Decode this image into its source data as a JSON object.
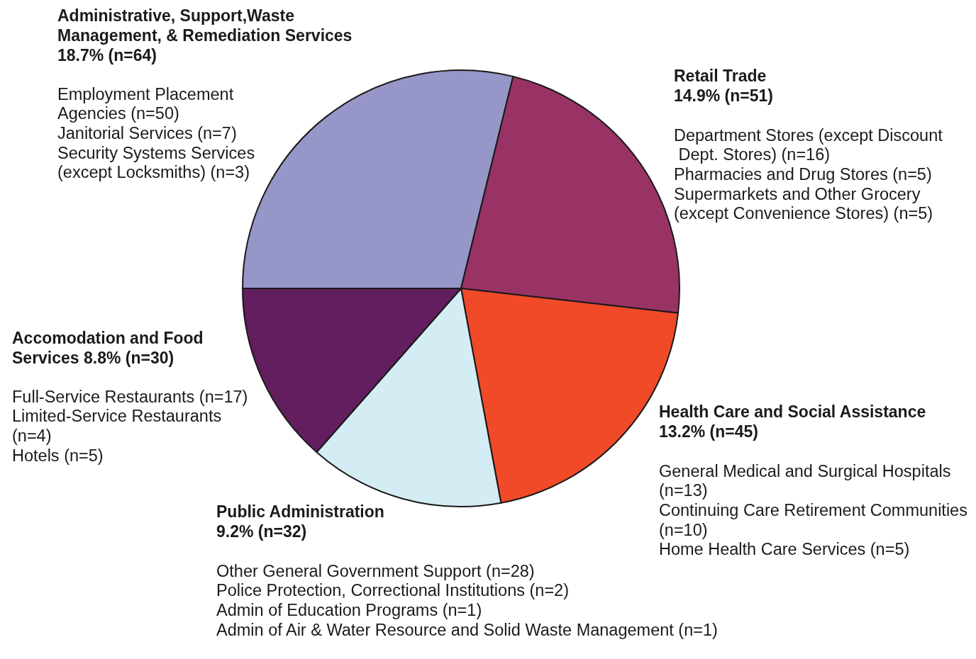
{
  "chart_data": {
    "type": "pie",
    "categories": [
      "Administrative, Support,Waste Management, & Remediation Services",
      "Retail Trade",
      "Health Care and Social Assistance",
      "Public Administration",
      "Accomodation and Food Services"
    ],
    "values": [
      64,
      51,
      45,
      32,
      30
    ],
    "value_labels": [
      "18.7% (n=64)",
      "14.9% (n=51)",
      "13.2% (n=45)",
      "9.2% (n=32)",
      "8.8% (n=30)"
    ],
    "colors": [
      "#9696c8",
      "#993366",
      "#f04a28",
      "#d4ecf4",
      "#621e5e"
    ],
    "annotations": [
      "Employment Placement Agencies (n=50)\nJanitorial Services (n=7)\nSecurity Systems Services (except Locksmiths) (n=3)",
      "Department Stores (except Discount Dept. Stores) (n=16)\nPharmacies and Drug Stores (n=5)\nSupermarkets and Other Grocery (except Convenience Stores) (n=5)",
      "General Medical and Surgical Hospitals (n=13)\nContinuing Care Retirement Communities (n=10)\nHome Health Care Services (n=5)",
      "Other General Government Support (n=28)\nPolice Protection, Correctional Institutions (n=2)\nAdmin of Education Programs (n=1)\nAdmin of Air & Water Resource and Solid Waste Management (n=1)",
      "Full-Service Restaurants (n=17)\nLimited-Service Restaurants (n=4)\nHotels (n=5)"
    ],
    "legend": false
  }
}
